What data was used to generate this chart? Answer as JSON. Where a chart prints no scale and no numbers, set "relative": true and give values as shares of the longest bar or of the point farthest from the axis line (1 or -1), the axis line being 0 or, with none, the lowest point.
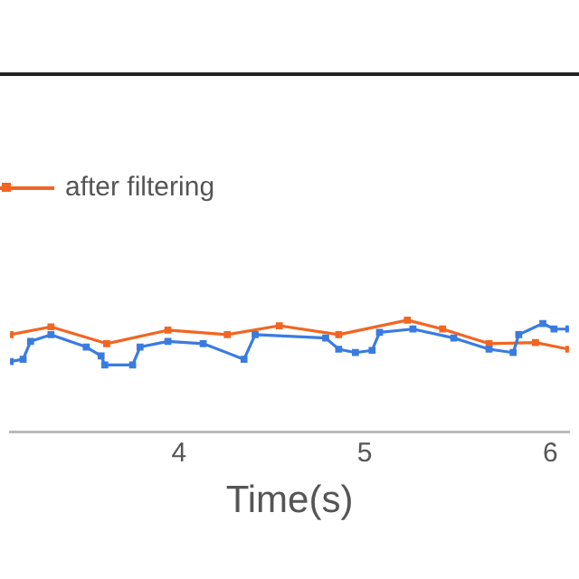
{
  "chart_data": {
    "type": "line",
    "xlabel": "Time(s)",
    "relative": true,
    "xlim": [
      3.09,
      6.1
    ],
    "xticks": [
      4,
      5,
      6
    ],
    "legend": "top left",
    "marker": "square",
    "grid": false,
    "series": [
      {
        "color": "#3a7be0",
        "x": [
          3.09,
          3.16,
          3.2,
          3.31,
          3.5,
          3.58,
          3.6,
          3.75,
          3.79,
          3.94,
          4.13,
          4.35,
          4.41,
          4.79,
          4.86,
          4.95,
          5.04,
          5.08,
          5.26,
          5.48,
          5.67,
          5.8,
          5.83,
          5.96,
          6.02,
          6.1
        ],
        "values": [
          0.63,
          0.65,
          0.81,
          0.87,
          0.76,
          0.68,
          0.6,
          0.6,
          0.76,
          0.81,
          0.79,
          0.65,
          0.87,
          0.84,
          0.74,
          0.71,
          0.73,
          0.89,
          0.92,
          0.84,
          0.74,
          0.71,
          0.87,
          0.97,
          0.92,
          0.92
        ]
      },
      {
        "name": "after filtering",
        "color": "#f26522",
        "x": [
          3.09,
          3.31,
          3.61,
          3.94,
          4.26,
          4.54,
          4.86,
          5.23,
          5.42,
          5.67,
          5.92,
          6.1
        ],
        "values": [
          0.87,
          0.94,
          0.79,
          0.91,
          0.87,
          0.95,
          0.87,
          1,
          0.92,
          0.79,
          0.8,
          0.74
        ]
      }
    ]
  }
}
